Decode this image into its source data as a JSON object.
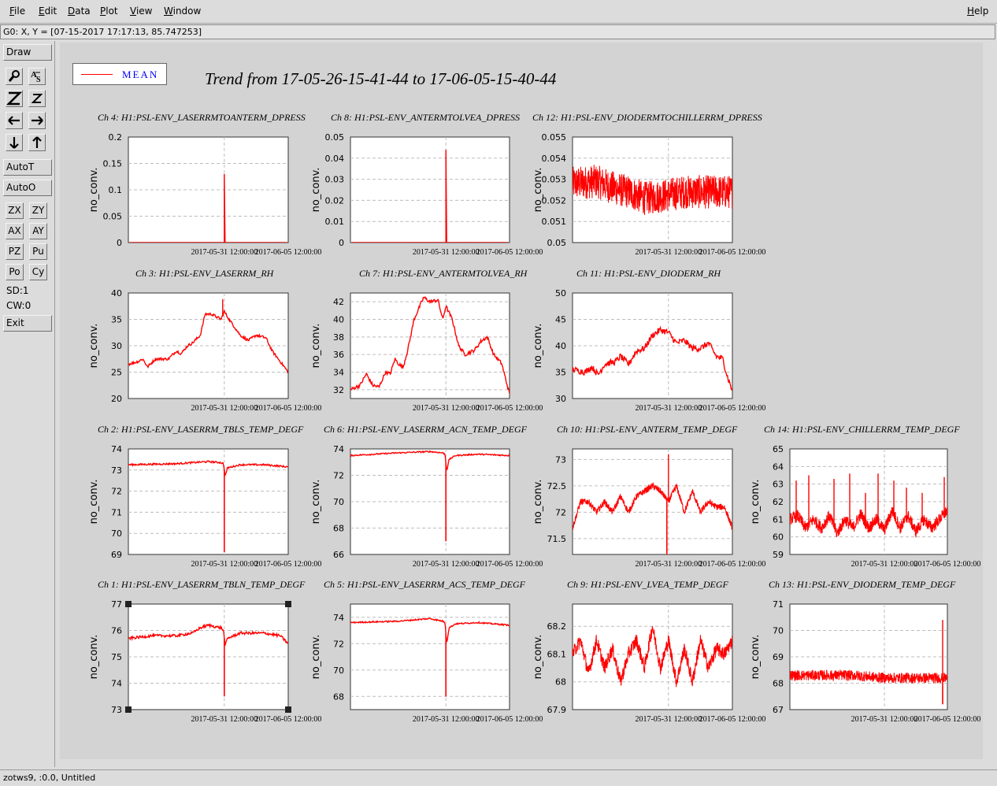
{
  "menu": {
    "file": {
      "u": "F",
      "rest": "ile"
    },
    "edit": {
      "u": "E",
      "rest": "dit"
    },
    "data": {
      "u": "D",
      "rest": "ata"
    },
    "plot": {
      "u": "P",
      "rest": "lot"
    },
    "view": {
      "u": "V",
      "rest": "iew"
    },
    "window": {
      "u": "W",
      "rest": "indow"
    },
    "help": {
      "u": "H",
      "rest": "elp"
    }
  },
  "coord_readout": "G0: X, Y = [07-15-2017 17:17:13, 85.747253]",
  "toolbar": {
    "draw": "Draw",
    "autot": "AutoT",
    "autoo": "AutoO",
    "zx": "ZX",
    "zy": "ZY",
    "ax": "AX",
    "ay": "AY",
    "pz": "PZ",
    "pu": "Pu",
    "po": "Po",
    "cy": "Cy",
    "sd": "SD:1",
    "cw": "CW:0",
    "exit": "Exit",
    "icons": [
      "magnify-icon",
      "text-size-icon",
      "zoom-out-icon",
      "zoom-in-icon",
      "arrow-left-icon",
      "arrow-right-icon",
      "arrow-down-icon",
      "arrow-up-icon"
    ]
  },
  "legend": {
    "label": "MEAN",
    "color": "#ff0000"
  },
  "main_title": "Trend from 17-05-26-15-41-44 to 17-06-05-15-40-44",
  "status": "zotws9, :0.0, Untitled",
  "chart_data": [
    {
      "type": "line",
      "title": "Ch 4: H1:PSL-ENV_LASERRMTOANTERM_DPRESS",
      "ylabel": "no_conv.",
      "x_ticks": [
        "2017-05-31 12:00:00",
        "2017-06-05 12:00:00"
      ],
      "y_ticks": [
        "0",
        "0.05",
        "0.1",
        "0.15",
        "0.2"
      ],
      "ylim": [
        0,
        0.2
      ],
      "pattern": "flat-spike",
      "base": 0.0,
      "spike": 0.13,
      "spike_at": 0.6
    },
    {
      "type": "line",
      "title": "Ch 8: H1:PSL-ENV_ANTERMTOLVEA_DPRESS",
      "ylabel": "no_conv.",
      "x_ticks": [
        "2017-05-31 12:00:00",
        "2017-06-05 12:00:00"
      ],
      "y_ticks": [
        "0",
        "0.01",
        "0.02",
        "0.03",
        "0.04",
        "0.05"
      ],
      "ylim": [
        0,
        0.05
      ],
      "pattern": "flat-spike",
      "base": 0.0,
      "spike": 0.044,
      "spike_at": 0.6
    },
    {
      "type": "line",
      "title": "Ch 12: H1:PSL-ENV_DIODERMTOCHILLERRM_DPRESS",
      "ylabel": "no_conv.",
      "x_ticks": [
        "2017-05-31 12:00:00",
        "2017-06-05 12:00:00"
      ],
      "y_ticks": [
        "0.05",
        "0.051",
        "0.052",
        "0.053",
        "0.054",
        "0.055"
      ],
      "ylim": [
        0.05,
        0.055
      ],
      "pattern": "noisy-band",
      "anchors": [
        [
          0,
          0.0528
        ],
        [
          0.15,
          0.0529
        ],
        [
          0.25,
          0.0526
        ],
        [
          0.35,
          0.0524
        ],
        [
          0.45,
          0.0521
        ],
        [
          0.55,
          0.0522
        ],
        [
          0.7,
          0.0524
        ],
        [
          0.85,
          0.0524
        ],
        [
          1,
          0.0524
        ]
      ],
      "noise": 0.0008
    },
    {
      "type": "line",
      "title": "Ch 3: H1:PSL-ENV_LASERRM_RH",
      "ylabel": "no_conv.",
      "x_ticks": [
        "2017-05-31 12:00:00",
        "2017-06-05 12:00:00"
      ],
      "y_ticks": [
        "20",
        "25",
        "30",
        "35",
        "40"
      ],
      "ylim": [
        20,
        40
      ],
      "pattern": "smooth",
      "anchors": [
        [
          0,
          26.5
        ],
        [
          0.06,
          27
        ],
        [
          0.09,
          27.5
        ],
        [
          0.12,
          26
        ],
        [
          0.17,
          27.5
        ],
        [
          0.25,
          27.5
        ],
        [
          0.3,
          29
        ],
        [
          0.33,
          28.5
        ],
        [
          0.37,
          30
        ],
        [
          0.4,
          30.5
        ],
        [
          0.45,
          32
        ],
        [
          0.48,
          36
        ],
        [
          0.52,
          36
        ],
        [
          0.58,
          35
        ],
        [
          0.6,
          36.5
        ],
        [
          0.63,
          35
        ],
        [
          0.7,
          32
        ],
        [
          0.75,
          31
        ],
        [
          0.8,
          32
        ],
        [
          0.86,
          31.5
        ],
        [
          0.9,
          29
        ],
        [
          0.95,
          27
        ],
        [
          1,
          25
        ]
      ],
      "noise": 0.25,
      "spikes": [
        [
          0.59,
          38.8
        ]
      ]
    },
    {
      "type": "line",
      "title": "Ch 7: H1:PSL-ENV_ANTERMTOLVEA_RH",
      "ylabel": "no_conv.",
      "x_ticks": [
        "2017-05-31 12:00:00",
        "2017-06-05 12:00:00"
      ],
      "y_ticks": [
        "32",
        "34",
        "36",
        "38",
        "40",
        "42"
      ],
      "ylim": [
        31,
        43
      ],
      "pattern": "smooth",
      "anchors": [
        [
          0,
          32
        ],
        [
          0.06,
          32.5
        ],
        [
          0.1,
          33.8
        ],
        [
          0.14,
          32.5
        ],
        [
          0.18,
          32.3
        ],
        [
          0.22,
          34
        ],
        [
          0.25,
          33.8
        ],
        [
          0.28,
          35.5
        ],
        [
          0.3,
          35
        ],
        [
          0.33,
          34.5
        ],
        [
          0.36,
          36.5
        ],
        [
          0.4,
          40
        ],
        [
          0.46,
          42.5
        ],
        [
          0.5,
          42
        ],
        [
          0.55,
          42.2
        ],
        [
          0.58,
          40
        ],
        [
          0.6,
          41.5
        ],
        [
          0.64,
          40
        ],
        [
          0.68,
          37
        ],
        [
          0.72,
          36
        ],
        [
          0.78,
          36.5
        ],
        [
          0.82,
          37.5
        ],
        [
          0.86,
          38
        ],
        [
          0.9,
          36
        ],
        [
          0.95,
          35
        ],
        [
          1,
          31.5
        ]
      ],
      "noise": 0.2
    },
    {
      "type": "line",
      "title": "Ch 11: H1:PSL-ENV_DIODERM_RH",
      "ylabel": "no_conv.",
      "x_ticks": [
        "2017-05-31 12:00:00",
        "2017-06-05 12:00:00"
      ],
      "y_ticks": [
        "30",
        "35",
        "40",
        "45",
        "50"
      ],
      "ylim": [
        30,
        50
      ],
      "pattern": "smooth",
      "anchors": [
        [
          0,
          35.5
        ],
        [
          0.08,
          35
        ],
        [
          0.12,
          36
        ],
        [
          0.16,
          34.5
        ],
        [
          0.2,
          36.5
        ],
        [
          0.27,
          37
        ],
        [
          0.3,
          38
        ],
        [
          0.35,
          36.5
        ],
        [
          0.4,
          39
        ],
        [
          0.45,
          39.5
        ],
        [
          0.5,
          42
        ],
        [
          0.55,
          43
        ],
        [
          0.6,
          42.5
        ],
        [
          0.65,
          40.5
        ],
        [
          0.7,
          41
        ],
        [
          0.75,
          39.5
        ],
        [
          0.8,
          39.5
        ],
        [
          0.85,
          40.5
        ],
        [
          0.9,
          38
        ],
        [
          0.94,
          37.5
        ],
        [
          0.97,
          34
        ],
        [
          1,
          31.5
        ]
      ],
      "noise": 0.6
    },
    {
      "type": "line",
      "title": "Ch 2: H1:PSL-ENV_LASERRM_TBLS_TEMP_DEGF",
      "ylabel": "no_conv.",
      "x_ticks": [
        "2017-05-31 12:00:00",
        "2017-06-05 12:00:00"
      ],
      "y_ticks": [
        "69",
        "70",
        "71",
        "72",
        "73",
        "74"
      ],
      "ylim": [
        69,
        74
      ],
      "pattern": "plateau-dip",
      "anchors": [
        [
          0,
          73.25
        ],
        [
          0.3,
          73.3
        ],
        [
          0.5,
          73.4
        ],
        [
          0.58,
          73.35
        ],
        [
          0.595,
          73.3
        ],
        [
          0.605,
          72.7
        ],
        [
          0.62,
          73.1
        ],
        [
          0.7,
          73.25
        ],
        [
          0.85,
          73.25
        ],
        [
          1,
          73.15
        ]
      ],
      "noise": 0.04,
      "dip": [
        0.6,
        69.1
      ]
    },
    {
      "type": "line",
      "title": "Ch 6: H1:PSL-ENV_LASERRM_ACN_TEMP_DEGF",
      "ylabel": "no_conv.",
      "x_ticks": [
        "2017-05-31 12:00:00",
        "2017-06-05 12:00:00"
      ],
      "y_ticks": [
        "66",
        "68",
        "70",
        "72",
        "74"
      ],
      "ylim": [
        66,
        74
      ],
      "pattern": "plateau-dip",
      "anchors": [
        [
          0,
          73.5
        ],
        [
          0.3,
          73.7
        ],
        [
          0.5,
          73.8
        ],
        [
          0.58,
          73.7
        ],
        [
          0.595,
          73.6
        ],
        [
          0.605,
          72.3
        ],
        [
          0.62,
          73.2
        ],
        [
          0.66,
          73.5
        ],
        [
          0.8,
          73.6
        ],
        [
          1,
          73.5
        ]
      ],
      "noise": 0.05,
      "dip": [
        0.6,
        67
      ]
    },
    {
      "type": "line",
      "title": "Ch 10: H1:PSL-ENV_ANTERM_TEMP_DEGF",
      "ylabel": "no_conv.",
      "x_ticks": [
        "2017-05-31 12:00:00",
        "2017-06-05 12:00:00"
      ],
      "y_ticks": [
        "71.5",
        "72",
        "72.5",
        "73"
      ],
      "ylim": [
        71.2,
        73.2
      ],
      "pattern": "oscillating",
      "anchors": [
        [
          0,
          71.7
        ],
        [
          0.05,
          72.2
        ],
        [
          0.1,
          72.2
        ],
        [
          0.15,
          72
        ],
        [
          0.2,
          72.2
        ],
        [
          0.25,
          72
        ],
        [
          0.3,
          72.3
        ],
        [
          0.35,
          72
        ],
        [
          0.4,
          72.3
        ],
        [
          0.45,
          72.4
        ],
        [
          0.5,
          72.5
        ],
        [
          0.55,
          72.4
        ],
        [
          0.6,
          72.2
        ],
        [
          0.65,
          72.5
        ],
        [
          0.7,
          72
        ],
        [
          0.75,
          72.4
        ],
        [
          0.8,
          72
        ],
        [
          0.85,
          72.2
        ],
        [
          0.9,
          72.1
        ],
        [
          0.95,
          72.1
        ],
        [
          1,
          71.7
        ]
      ],
      "noise": 0.06,
      "spikes": [
        [
          0.6,
          73.1
        ]
      ],
      "dip": [
        0.59,
        71.2
      ]
    },
    {
      "type": "line",
      "title": "Ch 14: H1:PSL-ENV_CHILLERRM_TEMP_DEGF",
      "ylabel": "no_conv.",
      "x_ticks": [
        "2017-05-31 12:00:00",
        "2017-06-05 12:00:00"
      ],
      "y_ticks": [
        "59",
        "60",
        "61",
        "62",
        "63",
        "64",
        "65"
      ],
      "ylim": [
        59,
        65
      ],
      "pattern": "oscillating",
      "anchors": [
        [
          0,
          61
        ],
        [
          0.05,
          61.2
        ],
        [
          0.1,
          60.5
        ],
        [
          0.15,
          61
        ],
        [
          0.2,
          60.5
        ],
        [
          0.25,
          61.2
        ],
        [
          0.3,
          60.2
        ],
        [
          0.35,
          61
        ],
        [
          0.4,
          60.5
        ],
        [
          0.45,
          61.3
        ],
        [
          0.5,
          60.5
        ],
        [
          0.55,
          61
        ],
        [
          0.6,
          60.4
        ],
        [
          0.65,
          61.5
        ],
        [
          0.7,
          60.5
        ],
        [
          0.75,
          61.2
        ],
        [
          0.8,
          60.3
        ],
        [
          0.85,
          61
        ],
        [
          0.9,
          60.5
        ],
        [
          0.95,
          61
        ],
        [
          1,
          61.5
        ]
      ],
      "noise": 0.35,
      "spikes": [
        [
          0.04,
          63.2
        ],
        [
          0.12,
          63.5
        ],
        [
          0.28,
          63.3
        ],
        [
          0.38,
          63.6
        ],
        [
          0.48,
          62.5
        ],
        [
          0.56,
          63.6
        ],
        [
          0.66,
          63.2
        ],
        [
          0.74,
          62.8
        ],
        [
          0.84,
          62.5
        ],
        [
          0.98,
          63.4
        ]
      ]
    },
    {
      "type": "line",
      "title": "Ch 1: H1:PSL-ENV_LASERRM_TBLN_TEMP_DEGF",
      "ylabel": "no_conv.",
      "x_ticks": [
        "2017-05-31 12:00:00",
        "2017-06-05 12:00:00"
      ],
      "y_ticks": [
        "73",
        "74",
        "75",
        "76",
        "77"
      ],
      "ylim": [
        73,
        77
      ],
      "pattern": "plateau-dip",
      "anchors": [
        [
          0,
          75.7
        ],
        [
          0.15,
          75.8
        ],
        [
          0.3,
          75.8
        ],
        [
          0.4,
          75.9
        ],
        [
          0.45,
          76.1
        ],
        [
          0.5,
          76.2
        ],
        [
          0.58,
          76.1
        ],
        [
          0.595,
          76
        ],
        [
          0.605,
          75.4
        ],
        [
          0.62,
          75.7
        ],
        [
          0.7,
          75.9
        ],
        [
          0.85,
          75.9
        ],
        [
          0.95,
          75.8
        ],
        [
          1,
          75.5
        ]
      ],
      "noise": 0.05,
      "dip": [
        0.6,
        73.5
      ]
    },
    {
      "type": "line",
      "title": "Ch 5: H1:PSL-ENV_LASERRM_ACS_TEMP_DEGF",
      "ylabel": "no_conv.",
      "x_ticks": [
        "2017-05-31 12:00:00",
        "2017-06-05 12:00:00"
      ],
      "y_ticks": [
        "68",
        "70",
        "72",
        "74"
      ],
      "ylim": [
        67,
        75
      ],
      "pattern": "plateau-dip",
      "anchors": [
        [
          0,
          73.6
        ],
        [
          0.3,
          73.7
        ],
        [
          0.5,
          73.9
        ],
        [
          0.58,
          73.7
        ],
        [
          0.595,
          73.6
        ],
        [
          0.605,
          72
        ],
        [
          0.62,
          73.2
        ],
        [
          0.66,
          73.5
        ],
        [
          0.8,
          73.6
        ],
        [
          1,
          73.4
        ]
      ],
      "noise": 0.05,
      "dip": [
        0.6,
        68
      ]
    },
    {
      "type": "line",
      "title": "Ch 9: H1:PSL-ENV_LVEA_TEMP_DEGF",
      "ylabel": "no_conv.",
      "x_ticks": [
        "2017-05-31 12:00:00",
        "2017-06-05 12:00:00"
      ],
      "y_ticks": [
        "67.9",
        "68",
        "68.1",
        "68.2"
      ],
      "ylim": [
        67.9,
        68.28
      ],
      "pattern": "oscillating",
      "anchors": [
        [
          0,
          68.1
        ],
        [
          0.05,
          68.15
        ],
        [
          0.1,
          68.03
        ],
        [
          0.15,
          68.15
        ],
        [
          0.2,
          68.05
        ],
        [
          0.25,
          68.12
        ],
        [
          0.3,
          68.0
        ],
        [
          0.35,
          68.1
        ],
        [
          0.4,
          68.15
        ],
        [
          0.45,
          68.05
        ],
        [
          0.5,
          68.2
        ],
        [
          0.55,
          68.05
        ],
        [
          0.6,
          68.15
        ],
        [
          0.65,
          68.0
        ],
        [
          0.7,
          68.12
        ],
        [
          0.75,
          68.0
        ],
        [
          0.8,
          68.15
        ],
        [
          0.85,
          68.05
        ],
        [
          0.9,
          68.12
        ],
        [
          0.95,
          68.1
        ],
        [
          1,
          68.15
        ]
      ],
      "noise": 0.025
    },
    {
      "type": "line",
      "title": "Ch 13: H1:PSL-ENV_DIODERM_TEMP_DEGF",
      "ylabel": "no_conv.",
      "x_ticks": [
        "2017-05-31 12:00:00",
        "2017-06-05 12:00:00"
      ],
      "y_ticks": [
        "67",
        "68",
        "69",
        "70",
        "71"
      ],
      "ylim": [
        67,
        71
      ],
      "pattern": "noisy-band",
      "anchors": [
        [
          0,
          68.3
        ],
        [
          0.2,
          68.3
        ],
        [
          0.4,
          68.3
        ],
        [
          0.6,
          68.2
        ],
        [
          0.8,
          68.2
        ],
        [
          1,
          68.2
        ]
      ],
      "noise": 0.2,
      "spikes": [
        [
          0.97,
          70.4
        ]
      ],
      "dip": [
        0.97,
        67.2
      ]
    }
  ]
}
